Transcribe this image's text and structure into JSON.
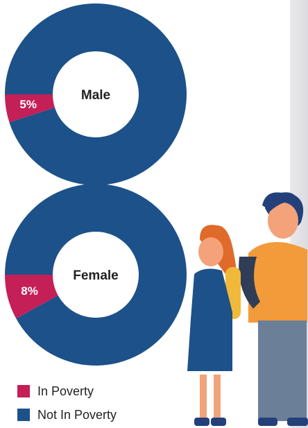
{
  "legend": [
    {
      "name": "In Poverty",
      "color": "#c41f57"
    },
    {
      "name": "Not In Poverty",
      "color": "#1d5189"
    }
  ],
  "chart_data": [
    {
      "type": "donut",
      "center_label": "Male",
      "values": [
        5,
        95
      ],
      "value_labels": [
        "5%",
        null
      ]
    },
    {
      "type": "donut",
      "center_label": "Female",
      "values": [
        8,
        92
      ],
      "value_labels": [
        "8%",
        null
      ]
    }
  ]
}
